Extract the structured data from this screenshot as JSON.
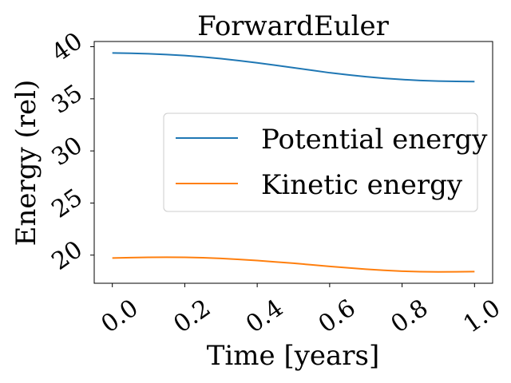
{
  "chart_data": {
    "type": "line",
    "title": "ForwardEuler",
    "xlabel": "Time [years]",
    "ylabel": "Energy (rel)",
    "xlim": [
      -0.05,
      1.05
    ],
    "ylim": [
      17.3,
      40.5
    ],
    "xticks": [
      "0.0",
      "0.2",
      "0.4",
      "0.6",
      "0.8",
      "1.0"
    ],
    "yticks": [
      "20",
      "25",
      "30",
      "35",
      "40"
    ],
    "grid": false,
    "legend_position": "center-right",
    "series": [
      {
        "name": "Potential energy",
        "color": "#1f77b4",
        "x": [
          0.0,
          0.05,
          0.1,
          0.15,
          0.2,
          0.25,
          0.3,
          0.35,
          0.4,
          0.45,
          0.5,
          0.55,
          0.6,
          0.65,
          0.7,
          0.75,
          0.8,
          0.85,
          0.9,
          0.95,
          1.0
        ],
        "y": [
          39.4,
          39.37,
          39.32,
          39.25,
          39.15,
          39.02,
          38.85,
          38.66,
          38.45,
          38.22,
          37.98,
          37.74,
          37.5,
          37.3,
          37.12,
          36.97,
          36.85,
          36.76,
          36.7,
          36.67,
          36.65
        ]
      },
      {
        "name": "Kinetic energy",
        "color": "#ff7f0e",
        "x": [
          0.0,
          0.05,
          0.1,
          0.15,
          0.2,
          0.25,
          0.3,
          0.35,
          0.4,
          0.45,
          0.5,
          0.55,
          0.6,
          0.65,
          0.7,
          0.75,
          0.8,
          0.85,
          0.9,
          0.95,
          1.0
        ],
        "y": [
          19.72,
          19.76,
          19.79,
          19.8,
          19.79,
          19.75,
          19.68,
          19.59,
          19.48,
          19.35,
          19.22,
          19.07,
          18.92,
          18.78,
          18.65,
          18.54,
          18.46,
          18.41,
          18.39,
          18.4,
          18.42
        ]
      }
    ]
  }
}
